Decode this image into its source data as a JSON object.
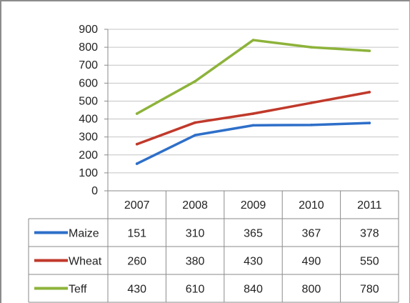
{
  "chart_data": {
    "type": "line",
    "title": "",
    "xlabel": "",
    "ylabel": "",
    "categories": [
      "2007",
      "2008",
      "2009",
      "2010",
      "2011"
    ],
    "ylim": [
      0,
      900
    ],
    "yticks": [
      "0",
      "100",
      "200",
      "300",
      "400",
      "500",
      "600",
      "700",
      "800",
      "900"
    ],
    "grid": true,
    "legend": "data-table",
    "series": [
      {
        "name": "Maize",
        "color": "#2e6fc9",
        "values": [
          151,
          310,
          365,
          367,
          378
        ],
        "labels": [
          "151",
          "310",
          "365",
          "367",
          "378"
        ]
      },
      {
        "name": "Wheat",
        "color": "#c0392b",
        "values": [
          260,
          380,
          430,
          490,
          550
        ],
        "labels": [
          "260",
          "380",
          "430",
          "490",
          "550"
        ]
      },
      {
        "name": "Teff",
        "color": "#8db33a",
        "values": [
          430,
          610,
          840,
          800,
          780
        ],
        "labels": [
          "430",
          "610",
          "840",
          "800",
          "780"
        ]
      }
    ]
  }
}
